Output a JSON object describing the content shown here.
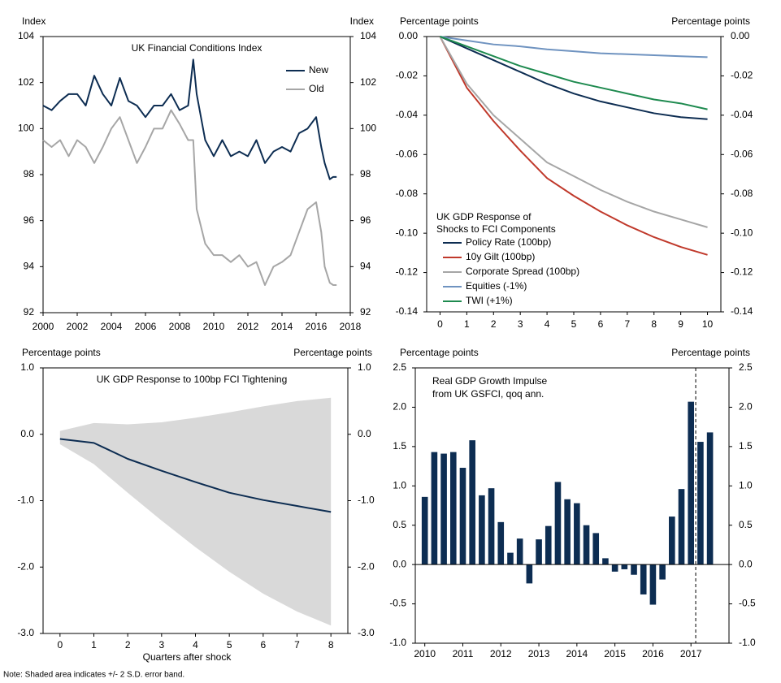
{
  "chart_data": [
    {
      "type": "line",
      "title": "UK Financial Conditions Index",
      "y_label": "Index",
      "y2_label": "Index",
      "x": [
        2000,
        2000.5,
        2001,
        2001.5,
        2002,
        2002.5,
        2003,
        2003.5,
        2004,
        2004.5,
        2005,
        2005.5,
        2006,
        2006.5,
        2007,
        2007.5,
        2008,
        2008.5,
        2008.8,
        2009,
        2009.5,
        2010,
        2010.5,
        2011,
        2011.5,
        2012,
        2012.5,
        2013,
        2013.5,
        2014,
        2014.5,
        2015,
        2015.5,
        2016,
        2016.3,
        2016.5,
        2016.8,
        2017,
        2017.2
      ],
      "series": [
        {
          "name": "New",
          "color": "#0d2d52",
          "values": [
            101,
            100.8,
            101.2,
            101.5,
            101.5,
            101,
            102.3,
            101.5,
            101,
            102.2,
            101.2,
            101,
            100.5,
            101,
            101,
            101.5,
            100.8,
            101,
            103,
            101.5,
            99.5,
            98.8,
            99.5,
            98.8,
            99,
            98.8,
            99.5,
            98.5,
            99,
            99.2,
            99,
            99.8,
            100,
            100.5,
            99.2,
            98.5,
            97.8,
            97.9,
            97.9
          ]
        },
        {
          "name": "Old",
          "color": "#a6a6a6",
          "values": [
            99.5,
            99.2,
            99.5,
            98.8,
            99.5,
            99.2,
            98.5,
            99.2,
            100,
            100.5,
            99.5,
            98.5,
            99.2,
            100,
            100,
            100.8,
            100.2,
            99.5,
            99.5,
            96.5,
            95,
            94.5,
            94.5,
            94.2,
            94.5,
            94,
            94.2,
            93.2,
            94,
            94.2,
            94.5,
            95.5,
            96.5,
            96.8,
            95.5,
            94,
            93.3,
            93.2,
            93.2
          ]
        }
      ],
      "xlim": [
        2000,
        2018
      ],
      "xticks": [
        2000,
        2002,
        2004,
        2006,
        2008,
        2010,
        2012,
        2014,
        2016,
        2018
      ],
      "ylim": [
        92,
        104
      ],
      "yticks": [
        92,
        94,
        96,
        98,
        100,
        102,
        104
      ],
      "y2lim": [
        92,
        104
      ],
      "y2ticks": [
        92,
        94,
        96,
        98,
        100,
        102,
        104
      ],
      "legend": "upper right"
    },
    {
      "type": "line",
      "legend_title": [
        "UK GDP Response of",
        "Shocks to FCI Components"
      ],
      "y_label": "Percentage points",
      "y2_label": "Percentage points",
      "x": [
        0,
        1,
        2,
        3,
        4,
        5,
        6,
        7,
        8,
        9,
        10
      ],
      "series": [
        {
          "name": "Policy Rate (100bp)",
          "color": "#0d2d52",
          "values": [
            0,
            -0.006,
            -0.012,
            -0.018,
            -0.024,
            -0.029,
            -0.033,
            -0.036,
            -0.039,
            -0.041,
            -0.042
          ]
        },
        {
          "name": "10y Gilt (100bp)",
          "color": "#c0392b",
          "values": [
            0,
            -0.026,
            -0.043,
            -0.058,
            -0.072,
            -0.081,
            -0.089,
            -0.096,
            -0.102,
            -0.107,
            -0.111
          ]
        },
        {
          "name": "Corporate Spread (100bp)",
          "color": "#a6a6a6",
          "values": [
            0,
            -0.024,
            -0.04,
            -0.052,
            -0.064,
            -0.071,
            -0.078,
            -0.084,
            -0.089,
            -0.093,
            -0.097
          ]
        },
        {
          "name": "Equities (-1%)",
          "color": "#6f93c0",
          "values": [
            0,
            -0.002,
            -0.004,
            -0.005,
            -0.0065,
            -0.0075,
            -0.0085,
            -0.009,
            -0.0095,
            -0.01,
            -0.0105
          ]
        },
        {
          "name": "TWI (+1%)",
          "color": "#1e8a4f",
          "values": [
            0,
            -0.005,
            -0.01,
            -0.015,
            -0.019,
            -0.023,
            -0.026,
            -0.029,
            -0.032,
            -0.034,
            -0.037
          ]
        }
      ],
      "xlim": [
        -0.5,
        10.5
      ],
      "xticks": [
        0,
        1,
        2,
        3,
        4,
        5,
        6,
        7,
        8,
        9,
        10
      ],
      "ylim": [
        -0.14,
        0
      ],
      "yticks": [
        {
          "value": -0.14,
          "label": "-0.14"
        },
        {
          "value": -0.12,
          "label": "-0.12"
        },
        {
          "value": -0.1,
          "label": "-0.10"
        },
        {
          "value": -0.08,
          "label": "-0.08"
        },
        {
          "value": -0.06,
          "label": "-0.06"
        },
        {
          "value": -0.04,
          "label": "-0.04"
        },
        {
          "value": -0.02,
          "label": "-0.02"
        },
        {
          "value": 0,
          "label": "0.00"
        }
      ],
      "y2lim": [
        -0.14,
        0
      ],
      "y2ticks": [
        {
          "value": -0.14,
          "label": "-0.14"
        },
        {
          "value": -0.12,
          "label": "-0.12"
        },
        {
          "value": -0.1,
          "label": "-0.10"
        },
        {
          "value": -0.08,
          "label": "-0.08"
        },
        {
          "value": -0.06,
          "label": "-0.06"
        },
        {
          "value": -0.04,
          "label": "-0.04"
        },
        {
          "value": -0.02,
          "label": "-0.02"
        },
        {
          "value": 0,
          "label": "0.00"
        }
      ],
      "legend": "lower left"
    },
    {
      "type": "line",
      "title": "UK GDP Response to 100bp FCI Tightening",
      "y_label": "Percentage points",
      "y2_label": "Percentage points",
      "x_label": "Quarters after shock",
      "x": [
        0,
        1,
        2,
        3,
        4,
        5,
        6,
        7,
        8
      ],
      "series": [
        {
          "color": "#0d2d52",
          "values": [
            -0.07,
            -0.13,
            -0.37,
            -0.55,
            -0.72,
            -0.88,
            -0.99,
            -1.08,
            -1.17
          ]
        }
      ],
      "band": {
        "color": "#d9d9d9",
        "upper": [
          0.05,
          0.17,
          0.15,
          0.18,
          0.25,
          0.33,
          0.42,
          0.5,
          0.55
        ],
        "lower": [
          -0.15,
          -0.45,
          -0.88,
          -1.3,
          -1.7,
          -2.07,
          -2.4,
          -2.67,
          -2.88
        ]
      },
      "xlim": [
        -0.5,
        8.5
      ],
      "xticks": [
        0,
        1,
        2,
        3,
        4,
        5,
        6,
        7,
        8
      ],
      "ylim": [
        -3,
        1
      ],
      "yticks": [
        {
          "value": -3,
          "label": "-3.0"
        },
        {
          "value": -2,
          "label": "-2.0"
        },
        {
          "value": -1,
          "label": "-1.0"
        },
        {
          "value": 0,
          "label": "0.0"
        },
        {
          "value": 1,
          "label": "1.0"
        }
      ],
      "y2lim": [
        -3,
        1
      ],
      "y2ticks": [
        {
          "value": -3,
          "label": "-3.0"
        },
        {
          "value": -2,
          "label": "-2.0"
        },
        {
          "value": -1,
          "label": "-1.0"
        },
        {
          "value": 0,
          "label": "0.0"
        },
        {
          "value": 1,
          "label": "1.0"
        }
      ]
    },
    {
      "type": "bar",
      "title": [
        "Real GDP Growth Impulse",
        "from UK GSFCI, qoq ann."
      ],
      "y_label": "Percentage points",
      "y2_label": "Percentage points",
      "color": "#0d2d52",
      "x": [
        2010,
        2010.25,
        2010.5,
        2010.75,
        2011,
        2011.25,
        2011.5,
        2011.75,
        2012,
        2012.25,
        2012.5,
        2012.75,
        2013,
        2013.25,
        2013.5,
        2013.75,
        2014,
        2014.25,
        2014.5,
        2014.75,
        2015,
        2015.25,
        2015.5,
        2015.75,
        2016,
        2016.25,
        2016.5,
        2016.75,
        2017,
        2017.25,
        2017.5
      ],
      "values": [
        0.86,
        1.43,
        1.41,
        1.43,
        1.23,
        1.58,
        0.88,
        0.97,
        0.54,
        0.15,
        0.33,
        -0.24,
        0.32,
        0.49,
        1.05,
        0.83,
        0.78,
        0.5,
        0.4,
        0.08,
        -0.09,
        -0.06,
        -0.13,
        -0.38,
        -0.51,
        -0.19,
        0.61,
        0.96,
        2.07,
        1.56,
        1.68
      ],
      "forecast_line_x": 2017.125,
      "xlim": [
        2009.75,
        2018
      ],
      "xticks": [
        2010,
        2011,
        2012,
        2013,
        2014,
        2015,
        2016,
        2017
      ],
      "ylim": [
        -1,
        2.5
      ],
      "yticks": [
        {
          "value": -1,
          "label": "-1.0"
        },
        -0.5,
        {
          "value": 0,
          "label": "0.0"
        },
        0.5,
        {
          "value": 1,
          "label": "1.0"
        },
        1.5,
        {
          "value": 2,
          "label": "2.0"
        },
        2.5
      ],
      "y2lim": [
        -1,
        2.5
      ],
      "y2ticks": [
        {
          "value": -1,
          "label": "-1.0"
        },
        -0.5,
        {
          "value": 0,
          "label": "0.0"
        },
        0.5,
        {
          "value": 1,
          "label": "1.0"
        },
        1.5,
        {
          "value": 2,
          "label": "2.0"
        },
        2.5
      ]
    }
  ],
  "note": "Note: Shaded area indicates +/- 2 S.D. error band."
}
